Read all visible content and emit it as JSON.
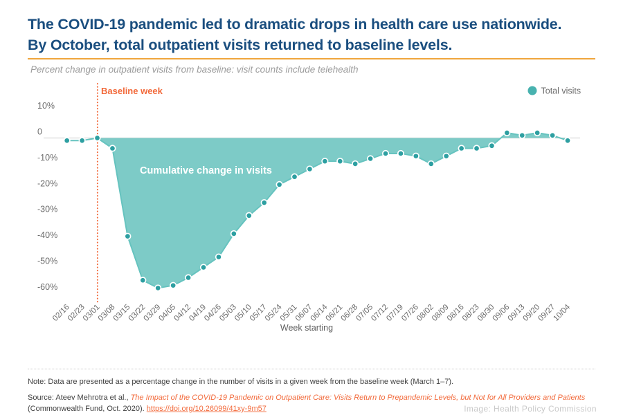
{
  "header": {
    "title_line1": "The COVID-19 pandemic led to dramatic drops in health care use nationwide.",
    "title_line2": "By October, total outpatient visits returned to baseline levels.",
    "subtitle": "Percent change in outpatient visits from baseline: visit counts include telehealth"
  },
  "colors": {
    "title_navy": "#1a4e7f",
    "rule_gold": "#f0a53c",
    "accent_orange": "#f2693a",
    "area_teal": "#7dcbc7",
    "line_teal": "#66c3bf",
    "dot_teal": "#2d9fa1",
    "legend_teal": "#48b2af",
    "axis_gray": "#6b6b6b",
    "zero_line_gray": "#d9d9d9",
    "area_label_white": "#ffffff"
  },
  "chart_data": {
    "type": "area",
    "title": "",
    "xlabel": "Week starting",
    "ylabel": "Percent change in outpatient visits from baseline",
    "grid": "zero-line-only",
    "ylim": [
      -65,
      15
    ],
    "legend_position": "top-right",
    "categories": [
      "02/16",
      "02/23",
      "03/01",
      "03/08",
      "03/15",
      "03/22",
      "03/29",
      "04/05",
      "04/12",
      "04/19",
      "04/26",
      "05/03",
      "05/10",
      "05/17",
      "05/24",
      "05/31",
      "06/07",
      "06/14",
      "06/21",
      "06/28",
      "07/05",
      "07/12",
      "07/19",
      "07/26",
      "08/02",
      "08/09",
      "08/16",
      "08/23",
      "08/30",
      "09/06",
      "09/13",
      "09/20",
      "09/27",
      "10/04"
    ],
    "series": [
      {
        "name": "Total visits",
        "values": [
          -1,
          -1,
          0,
          -4,
          -38,
          -55,
          -58,
          -57,
          -54,
          -50,
          -46,
          -37,
          -30,
          -25,
          -18,
          -15,
          -12,
          -9,
          -9,
          -10,
          -8,
          -6,
          -6,
          -7,
          -10,
          -7,
          -4,
          -4,
          -3,
          2,
          1,
          2,
          1,
          -1
        ]
      }
    ],
    "y_ticks": [
      {
        "value": 10,
        "label": "10%"
      },
      {
        "value": 0,
        "label": "0"
      },
      {
        "value": -10,
        "label": "-10%"
      },
      {
        "value": -20,
        "label": "-20%"
      },
      {
        "value": -30,
        "label": "-30%"
      },
      {
        "value": -40,
        "label": "-40%"
      },
      {
        "value": -50,
        "label": "-50%"
      },
      {
        "value": -60,
        "label": "-60%"
      }
    ],
    "annotations": {
      "baseline_label": "Baseline week",
      "baseline_week_index": 2,
      "area_label": "Cumulative change in visits",
      "legend_label": "Total visits"
    }
  },
  "footer": {
    "note": "Note: Data are presented as a percentage change in the number of visits in a given week from the baseline week (March 1–7).",
    "source_prefix": "Source: Ateev Mehrotra et al., ",
    "source_title": "The Impact of the COVID-19 Pandemic on Outpatient Care: Visits Return to Prepandemic Levels, but Not for All Providers and Patients",
    "source_line2_prefix": "(Commonwealth Fund, Oct. 2020). ",
    "source_link": "https://doi.org/10.26099/41xy-9m57",
    "credit": "Image: Health Policy Commission"
  }
}
